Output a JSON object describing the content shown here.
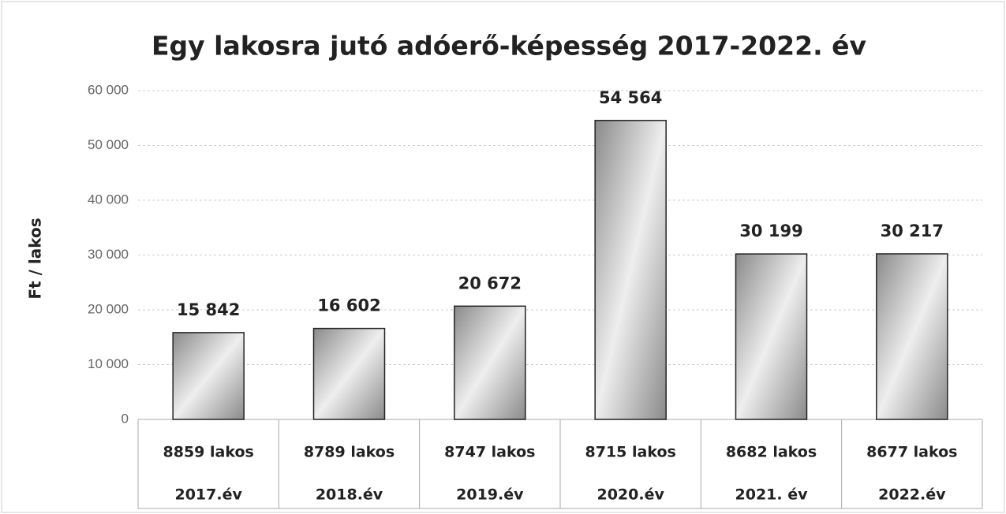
{
  "chart_data": {
    "type": "bar",
    "title": "Egy lakosra jutó adóerő-képesség 2017-2022. év",
    "y_label": "Ft / lakos",
    "categories": [
      [
        "8859 lakos",
        "2017.év"
      ],
      [
        "8789 lakos",
        "2018.év"
      ],
      [
        "8747 lakos",
        "2019.év"
      ],
      [
        "8715 lakos",
        "2020.év"
      ],
      [
        "8682 lakos",
        "2021. év"
      ],
      [
        "8677 lakos",
        "2022.év"
      ]
    ],
    "values": [
      15842,
      16602,
      20672,
      54564,
      30199,
      30217
    ],
    "value_labels": [
      "15 842",
      "16 602",
      "20 672",
      "54 564",
      "30 199",
      "30 217"
    ],
    "color": "#8a8a8a",
    "ylim": [
      0,
      60000
    ],
    "yticks": [
      0,
      {
        "value": 10000,
        "label": "10 000"
      },
      {
        "value": 20000,
        "label": "20 000"
      },
      {
        "value": 30000,
        "label": "30 000"
      },
      {
        "value": 40000,
        "label": "40 000"
      },
      {
        "value": 50000,
        "label": "50 000"
      },
      {
        "value": 60000,
        "label": "60 000"
      }
    ],
    "grid": true
  }
}
